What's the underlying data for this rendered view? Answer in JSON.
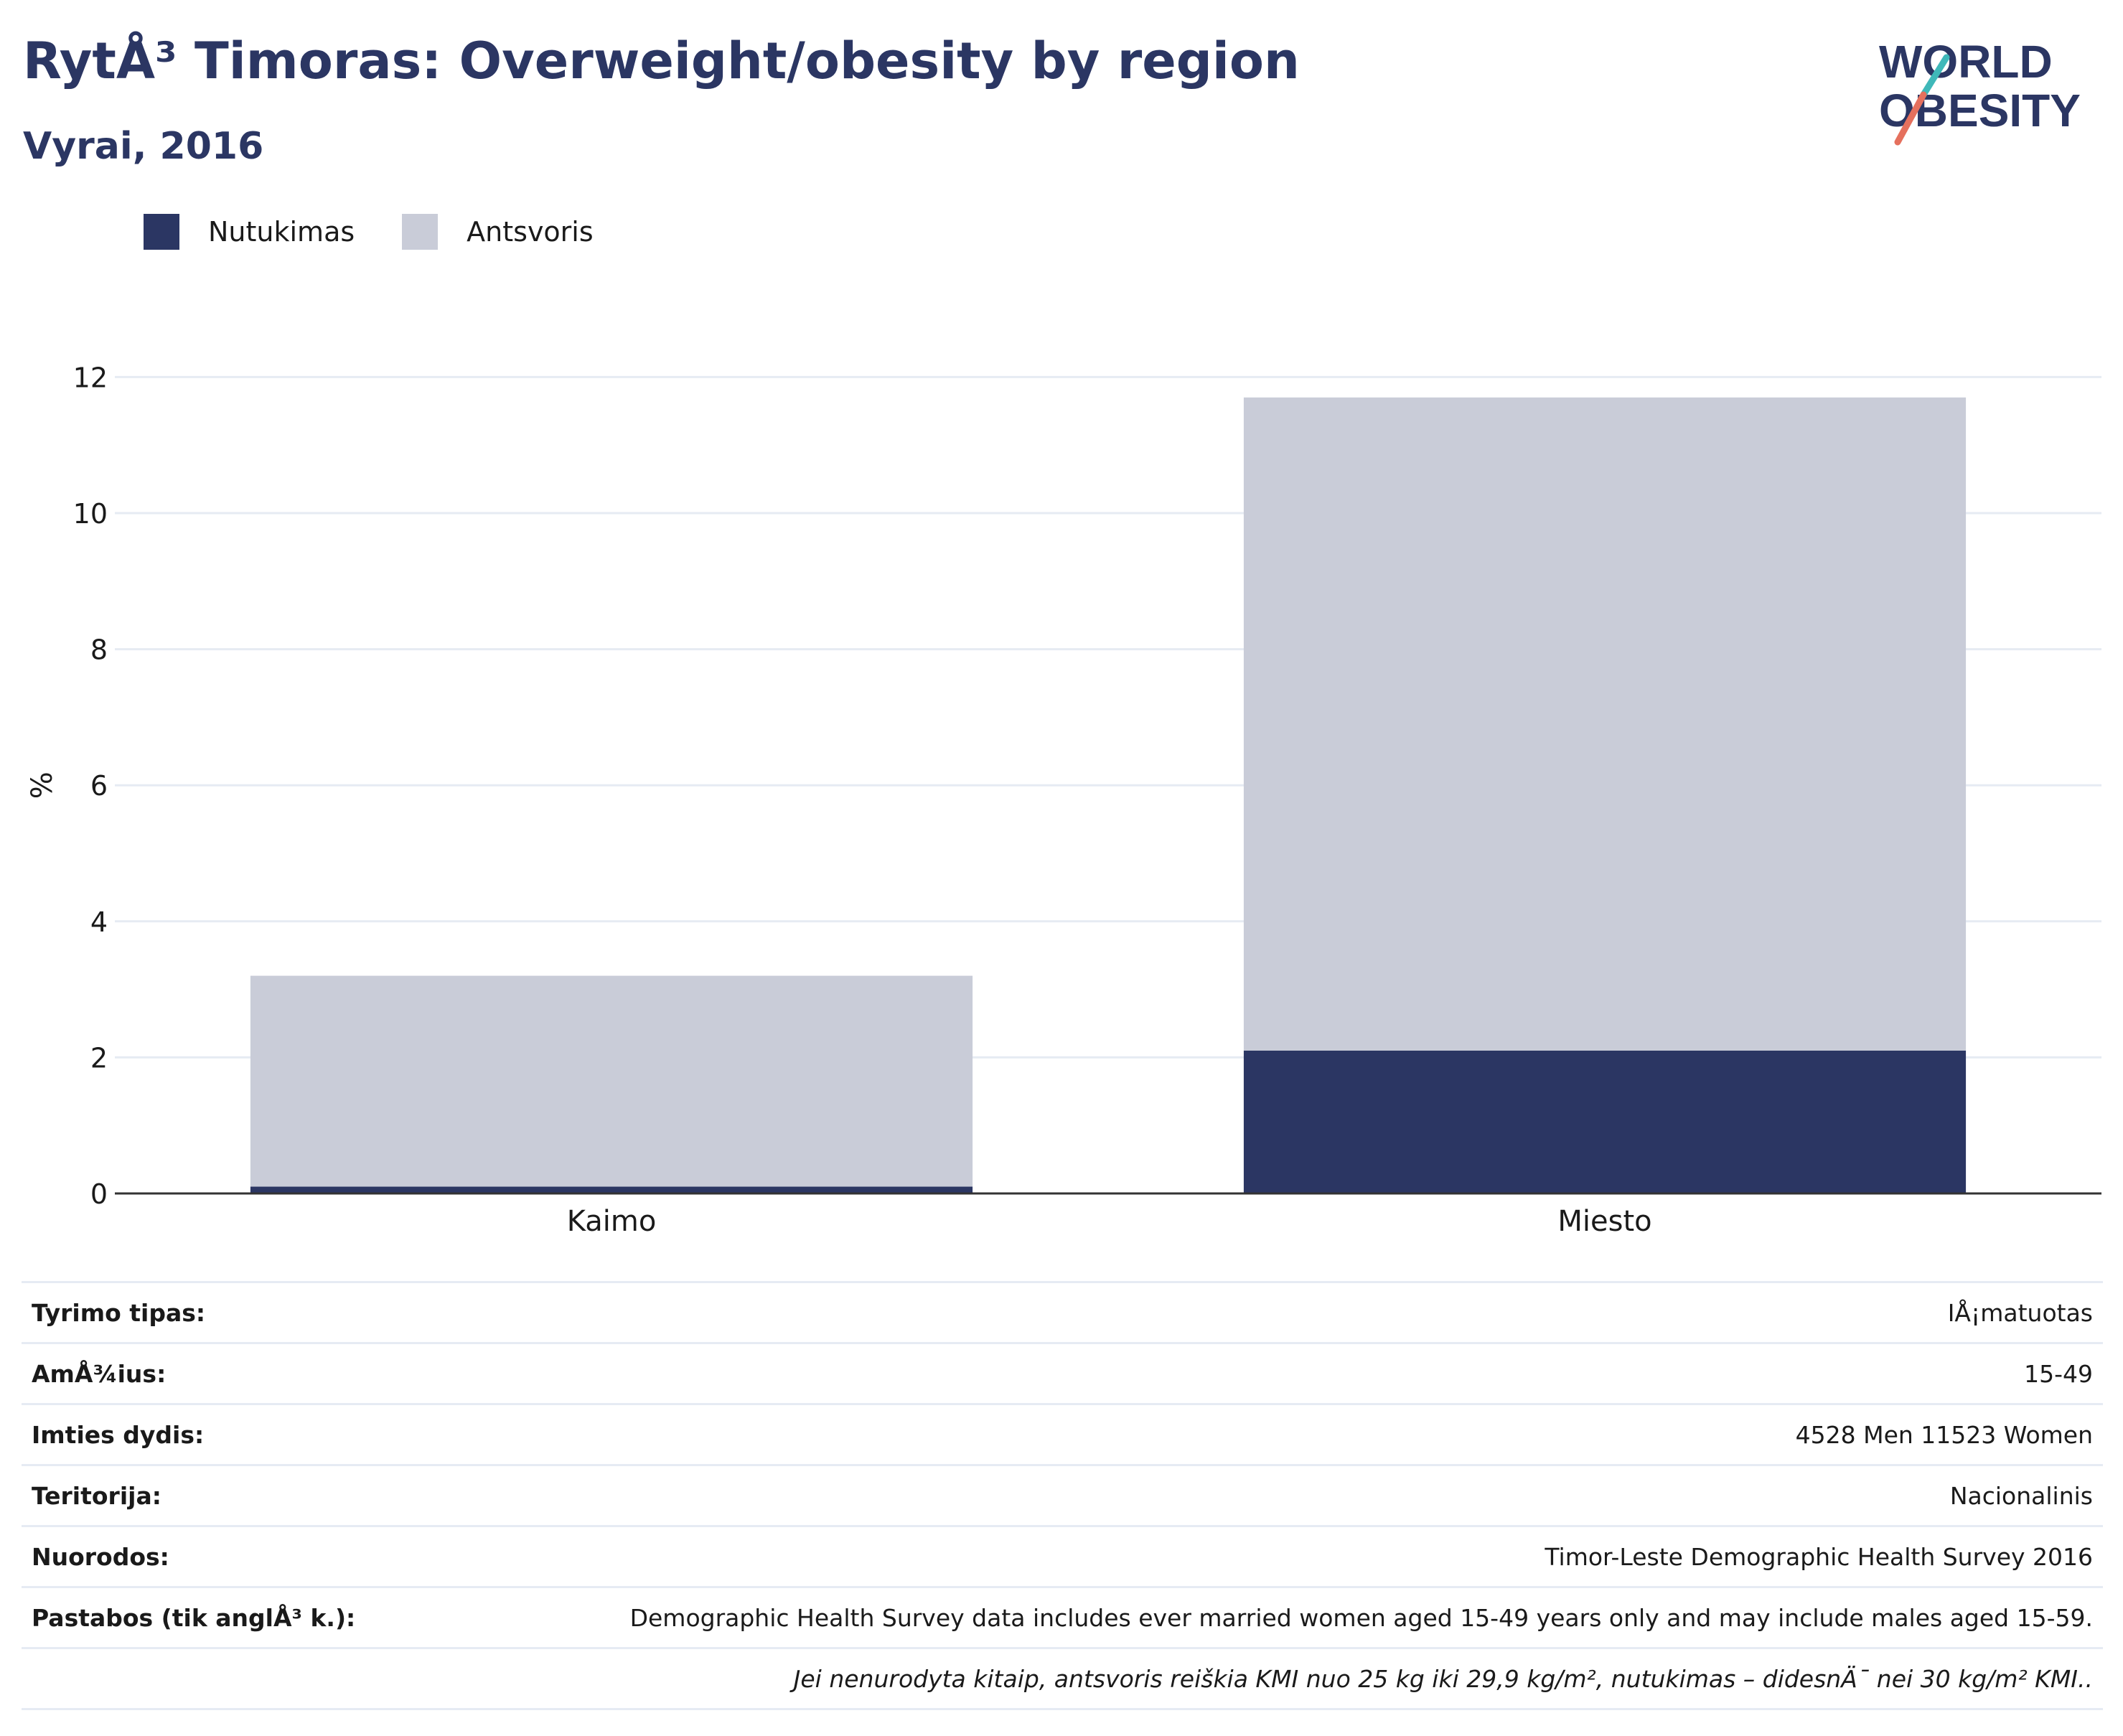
{
  "header": {
    "title": "RytÅ³ Timoras: Overweight/obesity by region",
    "subtitle": "Vyrai, 2016"
  },
  "logo": {
    "line1": "WORLD",
    "line2": "OBESITY",
    "colors": {
      "text": "#2b3663",
      "slash_top": "#3fb8b9",
      "slash_bottom": "#e5705d"
    }
  },
  "legend": {
    "items": [
      {
        "label": "Nutukimas",
        "color": "#2b3663"
      },
      {
        "label": "Antsvoris",
        "color": "#c9ccd8"
      }
    ]
  },
  "chart_data": {
    "type": "bar",
    "stacked": true,
    "categories": [
      "Kaimo",
      "Miesto"
    ],
    "series": [
      {
        "name": "Nutukimas",
        "values": [
          0.1,
          2.1
        ],
        "color": "#2b3663"
      },
      {
        "name": "Antsvoris",
        "values": [
          3.1,
          9.6
        ],
        "color": "#c9ccd8"
      }
    ],
    "ylabel": "%",
    "xlabel": "",
    "ylim": [
      0,
      13
    ],
    "yticks": [
      0,
      2,
      4,
      6,
      8,
      10,
      12
    ],
    "grid": true,
    "legend_position": "top-left"
  },
  "info": {
    "rows": [
      {
        "label": "Tyrimo tipas:",
        "value": "IÅ¡matuotas"
      },
      {
        "label": "AmÅ¾ius:",
        "value": "15-49"
      },
      {
        "label": "Imties dydis:",
        "value": "4528 Men 11523 Women"
      },
      {
        "label": "Teritorija:",
        "value": "Nacionalinis"
      },
      {
        "label": "Nuorodos:",
        "value": "Timor-Leste Demographic Health Survey 2016"
      },
      {
        "label": "Pastabos (tik anglÅ³ k.):",
        "value": "Demographic Health Survey data includes ever married women aged 15-49 years only and may include males aged 15-59."
      }
    ],
    "footnote": "Jei nenurodyta kitaip, antsvoris reiškia KMI nuo 25 kg iki 29,9 kg/m², nutukimas – didesnÄ¯ nei 30 kg/m² KMI.."
  }
}
